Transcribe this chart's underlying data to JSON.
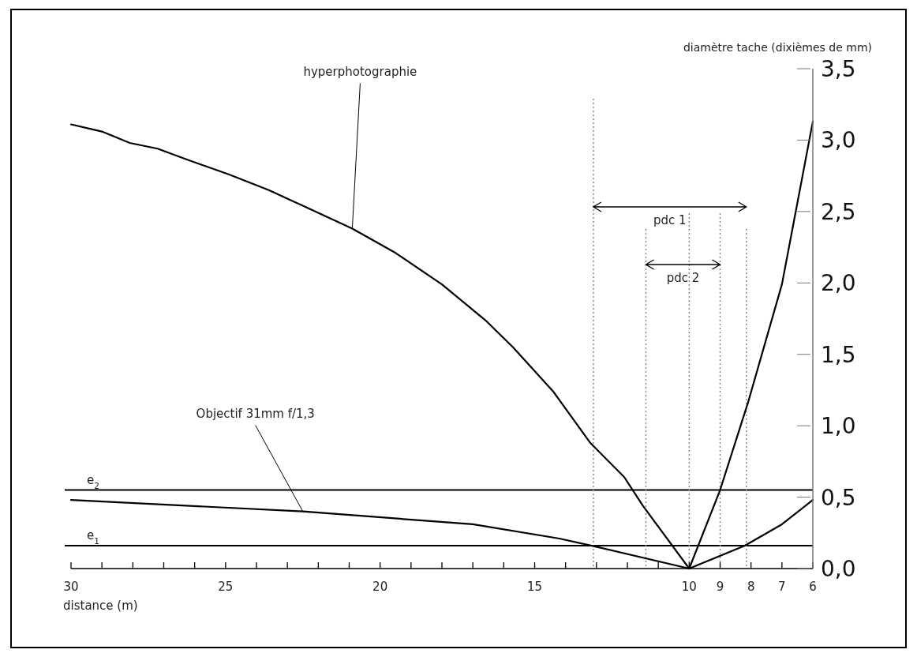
{
  "chart_data": {
    "type": "line",
    "xlabel": "distance (m)",
    "ylabel": "diamètre tache (dixièmes de mm)",
    "xlim": [
      30,
      6
    ],
    "ylim": [
      0,
      3.5
    ],
    "xticks": [
      30,
      {
        "value": 29,
        "label": null
      },
      {
        "value": 28,
        "label": null
      },
      {
        "value": 27,
        "label": null
      },
      {
        "value": 26,
        "label": null
      },
      25,
      {
        "value": 24,
        "label": null
      },
      {
        "value": 23,
        "label": null
      },
      {
        "value": 22,
        "label": null
      },
      {
        "value": 21,
        "label": null
      },
      20,
      {
        "value": 19,
        "label": null
      },
      {
        "value": 18,
        "label": null
      },
      {
        "value": 17,
        "label": null
      },
      {
        "value": 16,
        "label": null
      },
      15,
      {
        "value": 14,
        "label": null
      },
      {
        "value": 13,
        "label": null
      },
      {
        "value": 12,
        "label": null
      },
      {
        "value": 11,
        "label": null
      },
      10,
      9,
      8,
      7,
      6
    ],
    "yticks": [
      {
        "value": 0,
        "label": "0,0"
      },
      {
        "value": 0.5,
        "label": "0,5"
      },
      {
        "value": 1,
        "label": "1,0"
      },
      {
        "value": 1.5,
        "label": "1,5"
      },
      {
        "value": 2,
        "label": "2,0"
      },
      {
        "value": 2.5,
        "label": "2,5"
      },
      {
        "value": 3,
        "label": "3,0"
      },
      {
        "value": 3.5,
        "label": "3,5"
      }
    ],
    "grid": false,
    "marker": "none",
    "line_style": "solid",
    "series": [
      {
        "name": "hyperphotographie",
        "color": "#000000",
        "x": [
          30,
          29,
          28.1,
          27.2,
          26.2,
          24.9,
          23.6,
          22.5,
          20.9,
          19.5,
          18,
          16.6,
          15.7,
          14.4,
          13.2,
          12.1,
          11.5,
          10,
          9,
          8.1,
          7,
          6
        ],
        "values": [
          3.11,
          3.06,
          2.98,
          2.94,
          2.86,
          2.76,
          2.65,
          2.54,
          2.38,
          2.21,
          1.99,
          1.74,
          1.55,
          1.24,
          0.88,
          0.64,
          0.44,
          0,
          0.55,
          1.16,
          1.99,
          3.13
        ]
      },
      {
        "name": "Objectif 31mm f/1,3",
        "color": "#000000",
        "x": [
          30,
          22.5,
          17,
          14.2,
          13.15,
          10,
          8.2,
          7,
          6
        ],
        "values": [
          0.48,
          0.4,
          0.31,
          0.21,
          0.16,
          0,
          0.16,
          0.31,
          0.48
        ]
      }
    ],
    "ref_lines": [
      {
        "axis": "y",
        "value": 0.55,
        "label": "e$_{2}$",
        "color": "#000000",
        "line_style": "solid"
      },
      {
        "axis": "y",
        "value": 0.16,
        "label": "e$_{1}$",
        "color": "#000000",
        "line_style": "solid"
      },
      {
        "axis": "x",
        "value": 13.1,
        "color": "#888888",
        "line_style": "dotted"
      },
      {
        "axis": "x",
        "value": 11.4,
        "color": "#888888",
        "line_style": "dotted"
      },
      {
        "axis": "x",
        "value": 10,
        "color": "#888888",
        "line_style": "dotted"
      },
      {
        "axis": "x",
        "value": 9,
        "color": "#888888",
        "line_style": "dotted"
      },
      {
        "axis": "x",
        "value": 8.15,
        "color": "#888888",
        "line_style": "dotted"
      }
    ],
    "annotations": [
      "pdc 1",
      "pdc 2"
    ]
  }
}
